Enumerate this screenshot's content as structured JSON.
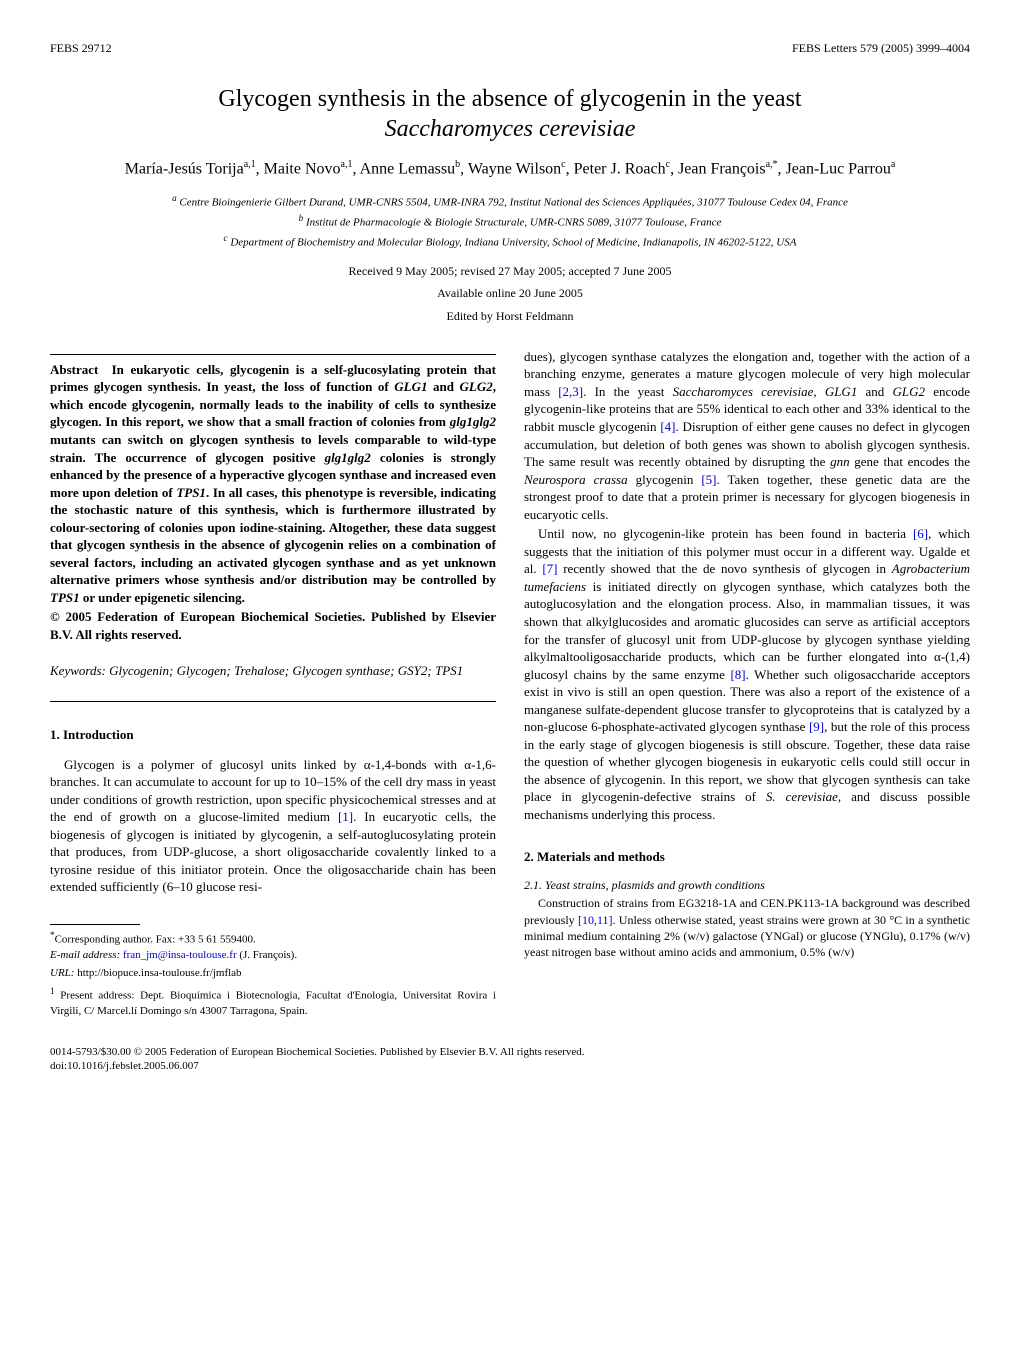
{
  "header": {
    "left": "FEBS 29712",
    "right": "FEBS Letters 579 (2005) 3999–4004"
  },
  "title_line1": "Glycogen synthesis in the absence of glycogenin in the yeast",
  "title_line2_italic": "Saccharomyces cerevisiae",
  "authors_html": "María-Jesús Torija<sup>a,1</sup>, Maite Novo<sup>a,1</sup>, Anne Lemassu<sup>b</sup>, Wayne Wilson<sup>c</sup>, Peter J. Roach<sup>c</sup>, Jean François<sup>a,*</sup>, Jean-Luc Parrou<sup>a</sup>",
  "affiliations": {
    "a": "Centre Bioingenierie Gilbert Durand, UMR-CNRS 5504, UMR-INRA 792, Institut National des Sciences Appliquées, 31077 Toulouse Cedex 04, France",
    "b": "Institut de Pharmacologie & Biologie Structurale, UMR-CNRS 5089, 31077 Toulouse, France",
    "c": "Department of Biochemistry and Molecular Biology, Indiana University, School of Medicine, Indianapolis, IN 46202-5122, USA"
  },
  "dates": "Received 9 May 2005; revised 27 May 2005; accepted 7 June 2005",
  "availability": "Available online 20 June 2005",
  "editor": "Edited by Horst Feldmann",
  "abstract_label": "Abstract",
  "abstract_body": "In eukaryotic cells, glycogenin is a self-glucosylating protein that primes glycogen synthesis. In yeast, the loss of function of <span class=\"gene\">GLG1</span> and <span class=\"gene\">GLG2</span>, which encode glycogenin, normally leads to the inability of cells to synthesize glycogen. In this report, we show that a small fraction of colonies from <span class=\"gene\">glg1glg2</span> mutants can switch on glycogen synthesis to levels comparable to wild-type strain. The occurrence of glycogen positive <span class=\"gene\">glg1glg2</span> colonies is strongly enhanced by the presence of a hyperactive glycogen synthase and increased even more upon deletion of <span class=\"gene\">TPS1</span>. In all cases, this phenotype is reversible, indicating the stochastic nature of this synthesis, which is furthermore illustrated by colour-sectoring of colonies upon iodine-staining. Altogether, these data suggest that glycogen synthesis in the absence of glycogenin relies on a combination of several factors, including an activated glycogen synthase and as yet unknown alternative primers whose synthesis and/or distribution may be controlled by <span class=\"gene\">TPS1</span> or under epigenetic silencing.",
  "copyright": "© 2005 Federation of European Biochemical Societies. Published by Elsevier B.V. All rights reserved.",
  "keywords_label": "Keywords:",
  "keywords": "Glycogenin; Glycogen; Trehalose; Glycogen synthase; <span class=\"gene\">GSY2</span>; <span class=\"gene\">TPS1</span>",
  "section1_heading": "1. Introduction",
  "intro_p1": "Glycogen is a polymer of glucosyl units linked by α-1,4-bonds with α-1,6-branches. It can accumulate to account for up to 10–15% of the cell dry mass in yeast under conditions of growth restriction, upon specific physicochemical stresses and at the end of growth on a glucose-limited medium <a class=\"ref\">[1]</a>. In eucaryotic cells, the biogenesis of glycogen is initiated by glycogenin, a self-autoglucosylating protein that produces, from UDP-glucose, a short oligosaccharide covalently linked to a tyrosine residue of this initiator protein. Once the oligosaccharide chain has been extended sufficiently (6–10 glucose resi-",
  "intro_col2_p1": "dues), glycogen synthase catalyzes the elongation and, together with the action of a branching enzyme, generates a mature glycogen molecule of very high molecular mass <a class=\"ref\">[2,3]</a>. In the yeast <span class=\"gene\">Saccharomyces cerevisiae</span>, <span class=\"gene\">GLG1</span> and <span class=\"gene\">GLG2</span> encode glycogenin-like proteins that are 55% identical to each other and 33% identical to the rabbit muscle glycogenin <a class=\"ref\">[4]</a>. Disruption of either gene causes no defect in glycogen accumulation, but deletion of both genes was shown to abolish glycogen synthesis. The same result was recently obtained by disrupting the <span class=\"gene\">gnn</span> gene that encodes the <span class=\"gene\">Neurospora crassa</span> glycogenin <a class=\"ref\">[5]</a>. Taken together, these genetic data are the strongest proof to date that a protein primer is necessary for glycogen biogenesis in eucaryotic cells.",
  "intro_col2_p2": "Until now, no glycogenin-like protein has been found in bacteria <a class=\"ref\">[6]</a>, which suggests that the initiation of this polymer must occur in a different way. Ugalde et al. <a class=\"ref\">[7]</a> recently showed that the de novo synthesis of glycogen in <span class=\"gene\">Agrobacterium tumefaciens</span> is initiated directly on glycogen synthase, which catalyzes both the autoglucosylation and the elongation process. Also, in mammalian tissues, it was shown that alkylglucosides and aromatic glucosides can serve as artificial acceptors for the transfer of glucosyl unit from UDP-glucose by glycogen synthase yielding alkylmaltooligosaccharide products, which can be further elongated into α-(1,4) glucosyl chains by the same enzyme <a class=\"ref\">[8]</a>. Whether such oligosaccharide acceptors exist in vivo is still an open question. There was also a report of the existence of a manganese sulfate-dependent glucose transfer to glycoproteins that is catalyzed by a non-glucose 6-phosphate-activated glycogen synthase <a class=\"ref\">[9]</a>, but the role of this process in the early stage of glycogen biogenesis is still obscure. Together, these data raise the question of whether glycogen biogenesis in eukaryotic cells could still occur in the absence of glycogenin. In this report, we show that glycogen synthesis can take place in glycogenin-defective strains of <span class=\"gene\">S. cerevisiae</span>, and discuss possible mechanisms underlying this process.",
  "section2_heading": "2. Materials and methods",
  "sub21_heading": "2.1. Yeast strains, plasmids and growth conditions",
  "sub21_body": "Construction of strains from EG3218-1A and CEN.PK113-1A background was described previously <a class=\"ref\">[10,11]</a>. Unless otherwise stated, yeast strains were grown at 30 °C in a synthetic minimal medium containing 2% (w/v) galactose (YNGal) or glucose (YNGlu), 0.17% (w/v) yeast nitrogen base without amino acids and ammonium, 0.5% (w/v)",
  "footnotes": {
    "corresponding": "Corresponding author. Fax: +33 5 61 559400.",
    "email_label": "E-mail address:",
    "email_link": "fran_jm@insa-toulouse.fr",
    "email_tail": "(J. François).",
    "url_label": "URL:",
    "url": "http://biopuce.insa-toulouse.fr/jmflab",
    "note1": "Present address: Dept. Bioquímica i Biotecnologia, Facultat d'Enologia, Universitat Rovira i Virgili, C/ Marcel.lí Domingo s/n 43007 Tarragona, Spain."
  },
  "footer": {
    "line1": "0014-5793/$30.00 © 2005 Federation of European Biochemical Societies. Published by Elsevier B.V. All rights reserved.",
    "line2": "doi:10.1016/j.febslet.2005.06.007"
  },
  "colors": {
    "text": "#000000",
    "background": "#ffffff",
    "link": "#0000cc"
  }
}
